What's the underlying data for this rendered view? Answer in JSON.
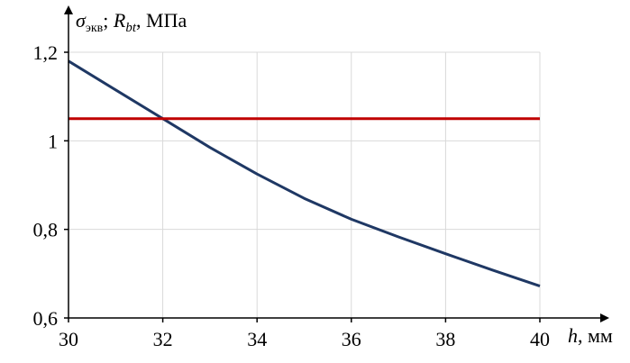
{
  "chart_data": {
    "type": "line",
    "xlabel": {
      "var": "h",
      "unit": ", мм"
    },
    "ylabel": {
      "sym1": "σ",
      "sub1": "экв",
      "sep": "; ",
      "sym2": "R",
      "sub2": "bt",
      "unit": ", МПа"
    },
    "xlim": [
      30,
      40
    ],
    "ylim": [
      0.6,
      1.2
    ],
    "x_ticks": [
      30,
      32,
      34,
      36,
      38,
      40
    ],
    "x_tick_labels": [
      "30",
      "32",
      "34",
      "36",
      "38",
      "40"
    ],
    "y_ticks": [
      0.6,
      0.8,
      1.0,
      1.2
    ],
    "y_tick_labels": [
      "0,6",
      "0,8",
      "1",
      "1,2"
    ],
    "grid": true,
    "series": [
      {
        "color": "#1f3864",
        "x": [
          30,
          31,
          32,
          33,
          34,
          35,
          36,
          37,
          38,
          39,
          40
        ],
        "y": [
          1.18,
          1.115,
          1.05,
          0.985,
          0.925,
          0.87,
          0.823,
          0.783,
          0.745,
          0.708,
          0.672
        ]
      },
      {
        "color": "#c00000",
        "x": [
          30,
          40
        ],
        "y": [
          1.05,
          1.05
        ]
      }
    ]
  }
}
